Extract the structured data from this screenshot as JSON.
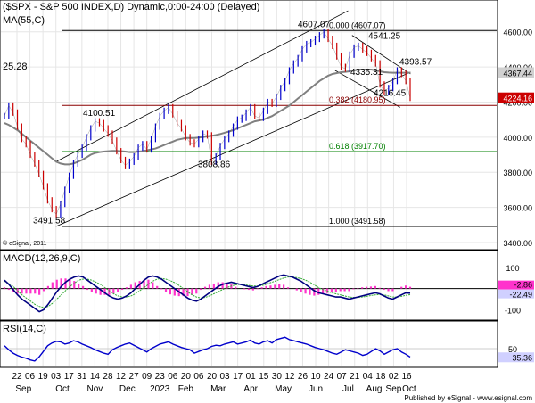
{
  "chart_data": {
    "type": "line",
    "title": "($SPX - S&P 500 INDEX,D) Dynamic,0:00-24:00 (Delayed)",
    "ma_label": "MA(55,C)",
    "copyright": "© eSignal, 2011",
    "footer": "Published by eSignal - www.esignal.com",
    "price_panel": {
      "ylim": [
        3400,
        4700
      ],
      "yticks": [
        "4600.00",
        "4400.00",
        "4200.00",
        "4000.00",
        "3800.00",
        "3600.00",
        "3400.00"
      ],
      "ytick_values": [
        4600,
        4400,
        4200,
        4000,
        3800,
        3600,
        3400
      ],
      "last_price": "4224.16",
      "ma_value": "4367.44",
      "left_edge_label": "25.28",
      "annotations": [
        {
          "text": "4607.07",
          "x": 222,
          "y": 4615
        },
        {
          "text": "4541.25",
          "x": 255,
          "y": 4550
        },
        {
          "text": "4393.57",
          "x": 272,
          "y": 4402
        },
        {
          "text": "4335.31",
          "x": 240,
          "y": 4345
        },
        {
          "text": "4216.45",
          "x": 258,
          "y": 4225
        },
        {
          "text": "4100.51",
          "x": 100,
          "y": 4110
        },
        {
          "text": "3808.86",
          "x": 140,
          "y": 3818
        },
        {
          "text": "3491.58",
          "x": 2,
          "y": 3500
        }
      ],
      "fib_levels": [
        {
          "label": "0.000 (4607.07)",
          "value": 4607.07,
          "color": "#000000"
        },
        {
          "label": "0.382 (4180.95)",
          "value": 4180.95,
          "color": "#8b0000"
        },
        {
          "label": "0.618 (3917.70)",
          "value": 3917.7,
          "color": "#008000"
        },
        {
          "label": "1.000 (3491.58)",
          "value": 3491.58,
          "color": "#000000"
        }
      ],
      "close_series": [
        4120,
        4180,
        4140,
        4060,
        3990,
        3960,
        3900,
        3850,
        3790,
        3720,
        3640,
        3590,
        3560,
        3620,
        3700,
        3780,
        3850,
        3900,
        3940,
        4000,
        4050,
        4090,
        4080,
        4050,
        4020,
        3980,
        3920,
        3870,
        3840,
        3860,
        3890,
        3940,
        3960,
        3930,
        3990,
        4060,
        4120,
        4150,
        4170,
        4130,
        4080,
        4050,
        4000,
        3970,
        3960,
        3990,
        4020,
        4010,
        3860,
        3890,
        3950,
        3990,
        4020,
        4060,
        4100,
        4110,
        4140,
        4170,
        4120,
        4110,
        4150,
        4200,
        4190,
        4230,
        4280,
        4320,
        4380,
        4420,
        4450,
        4500,
        4530,
        4540,
        4560,
        4580,
        4600,
        4560,
        4520,
        4460,
        4400,
        4390,
        4470,
        4510,
        4520,
        4500,
        4480,
        4450,
        4420,
        4300,
        4260,
        4280,
        4320,
        4380,
        4360,
        4320,
        4224
      ],
      "ma_series": [
        4080,
        4070,
        4055,
        4040,
        4020,
        4000,
        3980,
        3960,
        3940,
        3920,
        3900,
        3880,
        3860,
        3850,
        3845,
        3845,
        3850,
        3860,
        3870,
        3885,
        3900,
        3910,
        3915,
        3918,
        3920,
        3922,
        3922,
        3920,
        3918,
        3915,
        3915,
        3918,
        3920,
        3925,
        3930,
        3935,
        3945,
        3955,
        3965,
        3975,
        3985,
        3990,
        3995,
        3995,
        3995,
        3998,
        4000,
        4005,
        4008,
        4012,
        4018,
        4025,
        4032,
        4040,
        4050,
        4060,
        4070,
        4080,
        4090,
        4095,
        4100,
        4110,
        4120,
        4135,
        4150,
        4165,
        4180,
        4200,
        4220,
        4240,
        4260,
        4280,
        4300,
        4320,
        4335,
        4350,
        4360,
        4365,
        4370,
        4372,
        4375,
        4380,
        4385,
        4385,
        4385,
        4385,
        4380,
        4375,
        4370,
        4368,
        4367,
        4367,
        4367,
        4367,
        4367
      ]
    },
    "macd_panel": {
      "label": "MACD(12,26,9,C)",
      "ylim": [
        -120,
        100
      ],
      "yticks": [
        "100",
        "-100"
      ],
      "ytick_values": [
        100,
        -100
      ],
      "value_labels": [
        "-2.86",
        "-22.49"
      ],
      "macd_series": [
        40,
        20,
        -5,
        -30,
        -50,
        -65,
        -80,
        -95,
        -110,
        -100,
        -75,
        -45,
        -15,
        10,
        30,
        45,
        55,
        60,
        55,
        40,
        25,
        10,
        -5,
        -20,
        -35,
        -45,
        -50,
        -45,
        -35,
        -20,
        0,
        20,
        40,
        55,
        60,
        55,
        45,
        30,
        15,
        0,
        -15,
        -30,
        -45,
        -55,
        -60,
        -50,
        -35,
        -20,
        -5,
        10,
        20,
        25,
        30,
        25,
        20,
        15,
        10,
        5,
        10,
        20,
        30,
        40,
        50,
        60,
        65,
        60,
        55,
        45,
        35,
        20,
        5,
        -10,
        -20,
        -25,
        -30,
        -35,
        -40,
        -40,
        -45,
        -50,
        -45,
        -40,
        -35,
        -30,
        -25,
        -20,
        -25,
        -35,
        -45,
        -50,
        -40,
        -30,
        -20,
        -22
      ],
      "signal_series": [
        35,
        25,
        10,
        -10,
        -30,
        -45,
        -60,
        -75,
        -85,
        -90,
        -85,
        -70,
        -50,
        -30,
        -10,
        10,
        25,
        40,
        45,
        45,
        40,
        30,
        20,
        5,
        -10,
        -25,
        -35,
        -40,
        -40,
        -35,
        -25,
        -10,
        5,
        20,
        35,
        45,
        48,
        45,
        38,
        28,
        15,
        0,
        -15,
        -30,
        -40,
        -45,
        -42,
        -35,
        -25,
        -15,
        -5,
        5,
        12,
        18,
        20,
        18,
        15,
        12,
        12,
        15,
        20,
        28,
        35,
        43,
        50,
        55,
        55,
        52,
        48,
        40,
        30,
        18,
        5,
        -5,
        -12,
        -20,
        -25,
        -30,
        -35,
        -40,
        -42,
        -42,
        -40,
        -37,
        -33,
        -30,
        -28,
        -30,
        -35,
        -40,
        -40,
        -37,
        -32,
        -29
      ]
    },
    "rsi_panel": {
      "label": "RSI(14,C)",
      "ylim": [
        20,
        80
      ],
      "yticks": [
        "50"
      ],
      "ytick_values": [
        50
      ],
      "value_label": "35.36",
      "rsi_series": [
        55,
        48,
        42,
        38,
        35,
        33,
        30,
        28,
        35,
        45,
        55,
        60,
        63,
        62,
        58,
        60,
        64,
        62,
        58,
        55,
        52,
        48,
        45,
        42,
        40,
        48,
        52,
        55,
        58,
        60,
        56,
        52,
        48,
        44,
        50,
        54,
        58,
        60,
        62,
        58,
        55,
        52,
        50,
        48,
        42,
        45,
        48,
        50,
        54,
        56,
        55,
        58,
        60,
        62,
        58,
        60,
        62,
        65,
        60,
        58,
        62,
        64,
        60,
        66,
        68,
        70,
        66,
        64,
        62,
        60,
        58,
        55,
        52,
        50,
        48,
        45,
        42,
        40,
        44,
        48,
        46,
        44,
        42,
        38,
        40,
        45,
        50,
        46,
        40,
        44,
        48,
        50,
        44,
        40,
        35
      ]
    },
    "x_axis": {
      "day_labels": [
        "22",
        "06",
        "19",
        "03",
        "17",
        "31",
        "14",
        "28",
        "12",
        "27",
        "09",
        "23",
        "06",
        "20",
        "06",
        "20",
        "03",
        "17",
        "01",
        "15",
        "30",
        "12",
        "26",
        "10",
        "24",
        "07",
        "21",
        "04",
        "18",
        "02",
        "16"
      ],
      "month_labels": [
        "Sep",
        "Oct",
        "Nov",
        "Dec",
        "2023",
        "Feb",
        "Mar",
        "Apr",
        "May",
        "Jun",
        "Jul",
        "Aug",
        "Sep",
        "Oct"
      ],
      "month_positions": [
        0.5,
        3.5,
        6,
        8.5,
        11,
        13,
        15.5,
        18,
        20.5,
        23,
        25.5,
        27.5,
        29,
        30.2
      ]
    }
  }
}
